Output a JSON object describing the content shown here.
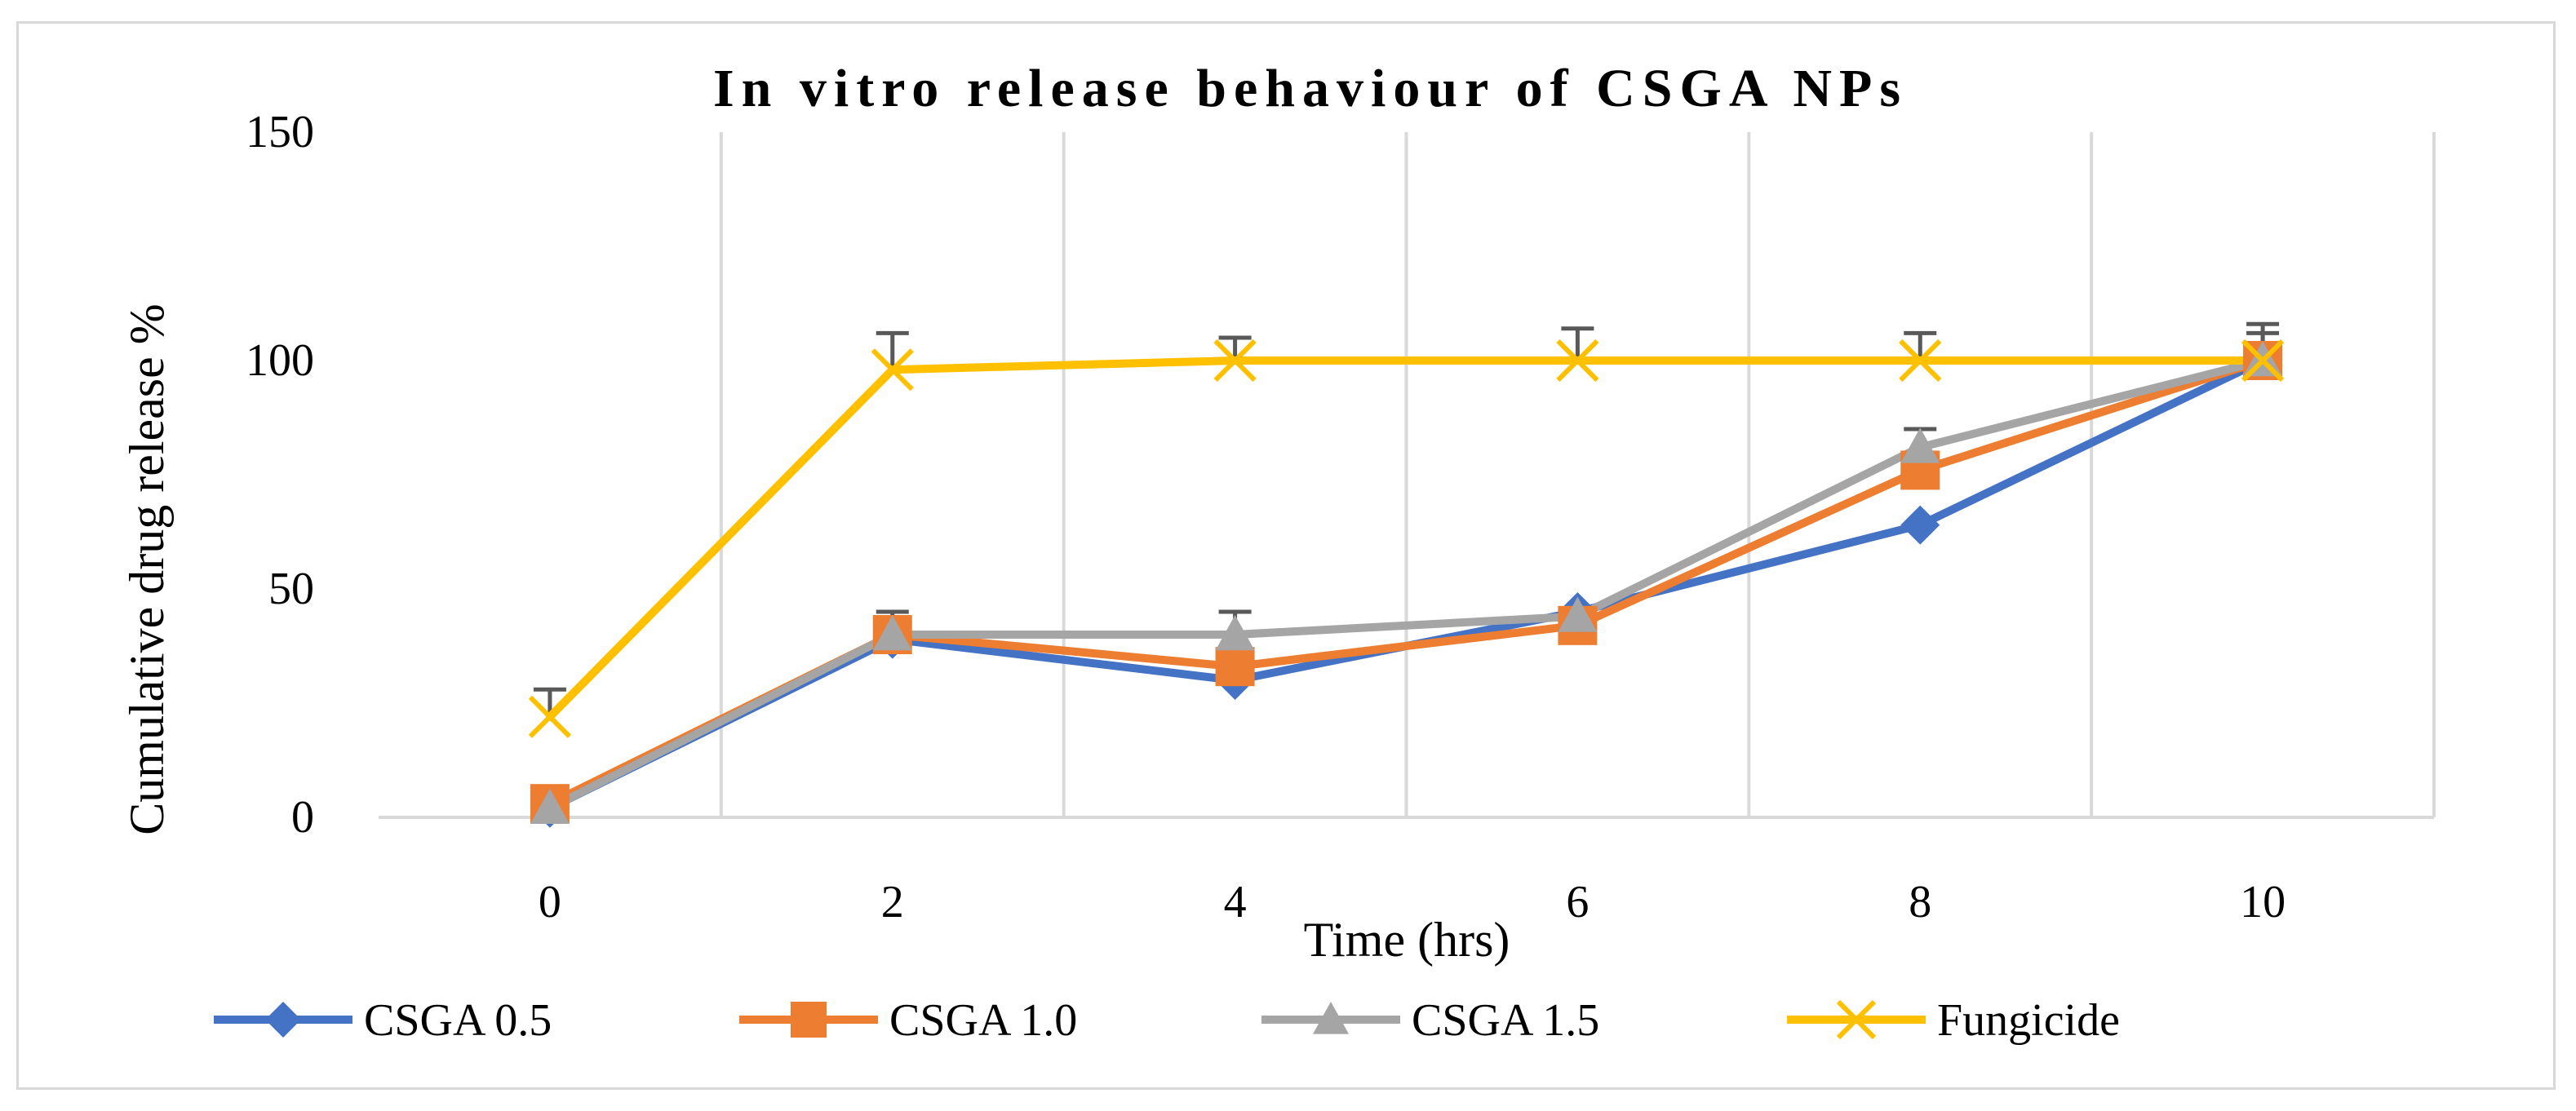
{
  "chart_data": {
    "type": "line",
    "title": "In vitro release behaviour of CSGA NPs",
    "xlabel": "Time (hrs)",
    "ylabel": "Cumulative drug release %",
    "x": [
      0,
      2,
      4,
      6,
      8,
      10
    ],
    "x_tick_labels": [
      "0",
      "2",
      "4",
      "6",
      "8",
      "10"
    ],
    "y_tick_labels": [
      "0",
      "50",
      "100",
      "150"
    ],
    "y_ticks": [
      0,
      50,
      100,
      150
    ],
    "ylim": [
      0,
      150
    ],
    "xlim": [
      -1,
      11
    ],
    "x_gridlines": [
      1,
      3,
      5,
      7,
      9,
      11
    ],
    "grid": "vertical",
    "legend_position": "bottom",
    "series": [
      {
        "name": "CSGA 0.5",
        "color": "#4472c4",
        "marker": "diamond",
        "values": [
          2,
          39,
          30,
          45,
          64,
          100
        ],
        "error": [
          0,
          0,
          0,
          0,
          0,
          0
        ]
      },
      {
        "name": "CSGA 1.0",
        "color": "#ed7d31",
        "marker": "square",
        "values": [
          3,
          40,
          33,
          42,
          76,
          100
        ],
        "error": [
          0,
          0,
          0,
          0,
          0,
          0
        ]
      },
      {
        "name": "CSGA 1.5",
        "color": "#a5a5a5",
        "marker": "triangle",
        "values": [
          2,
          40,
          40,
          44,
          81,
          100
        ],
        "error": [
          0,
          5,
          5,
          0,
          4,
          8
        ]
      },
      {
        "name": "Fungicide",
        "color": "#ffc000",
        "marker": "x",
        "values": [
          22,
          98,
          100,
          100,
          100,
          100
        ],
        "error": [
          6,
          8,
          5,
          7,
          6,
          6
        ]
      }
    ]
  }
}
